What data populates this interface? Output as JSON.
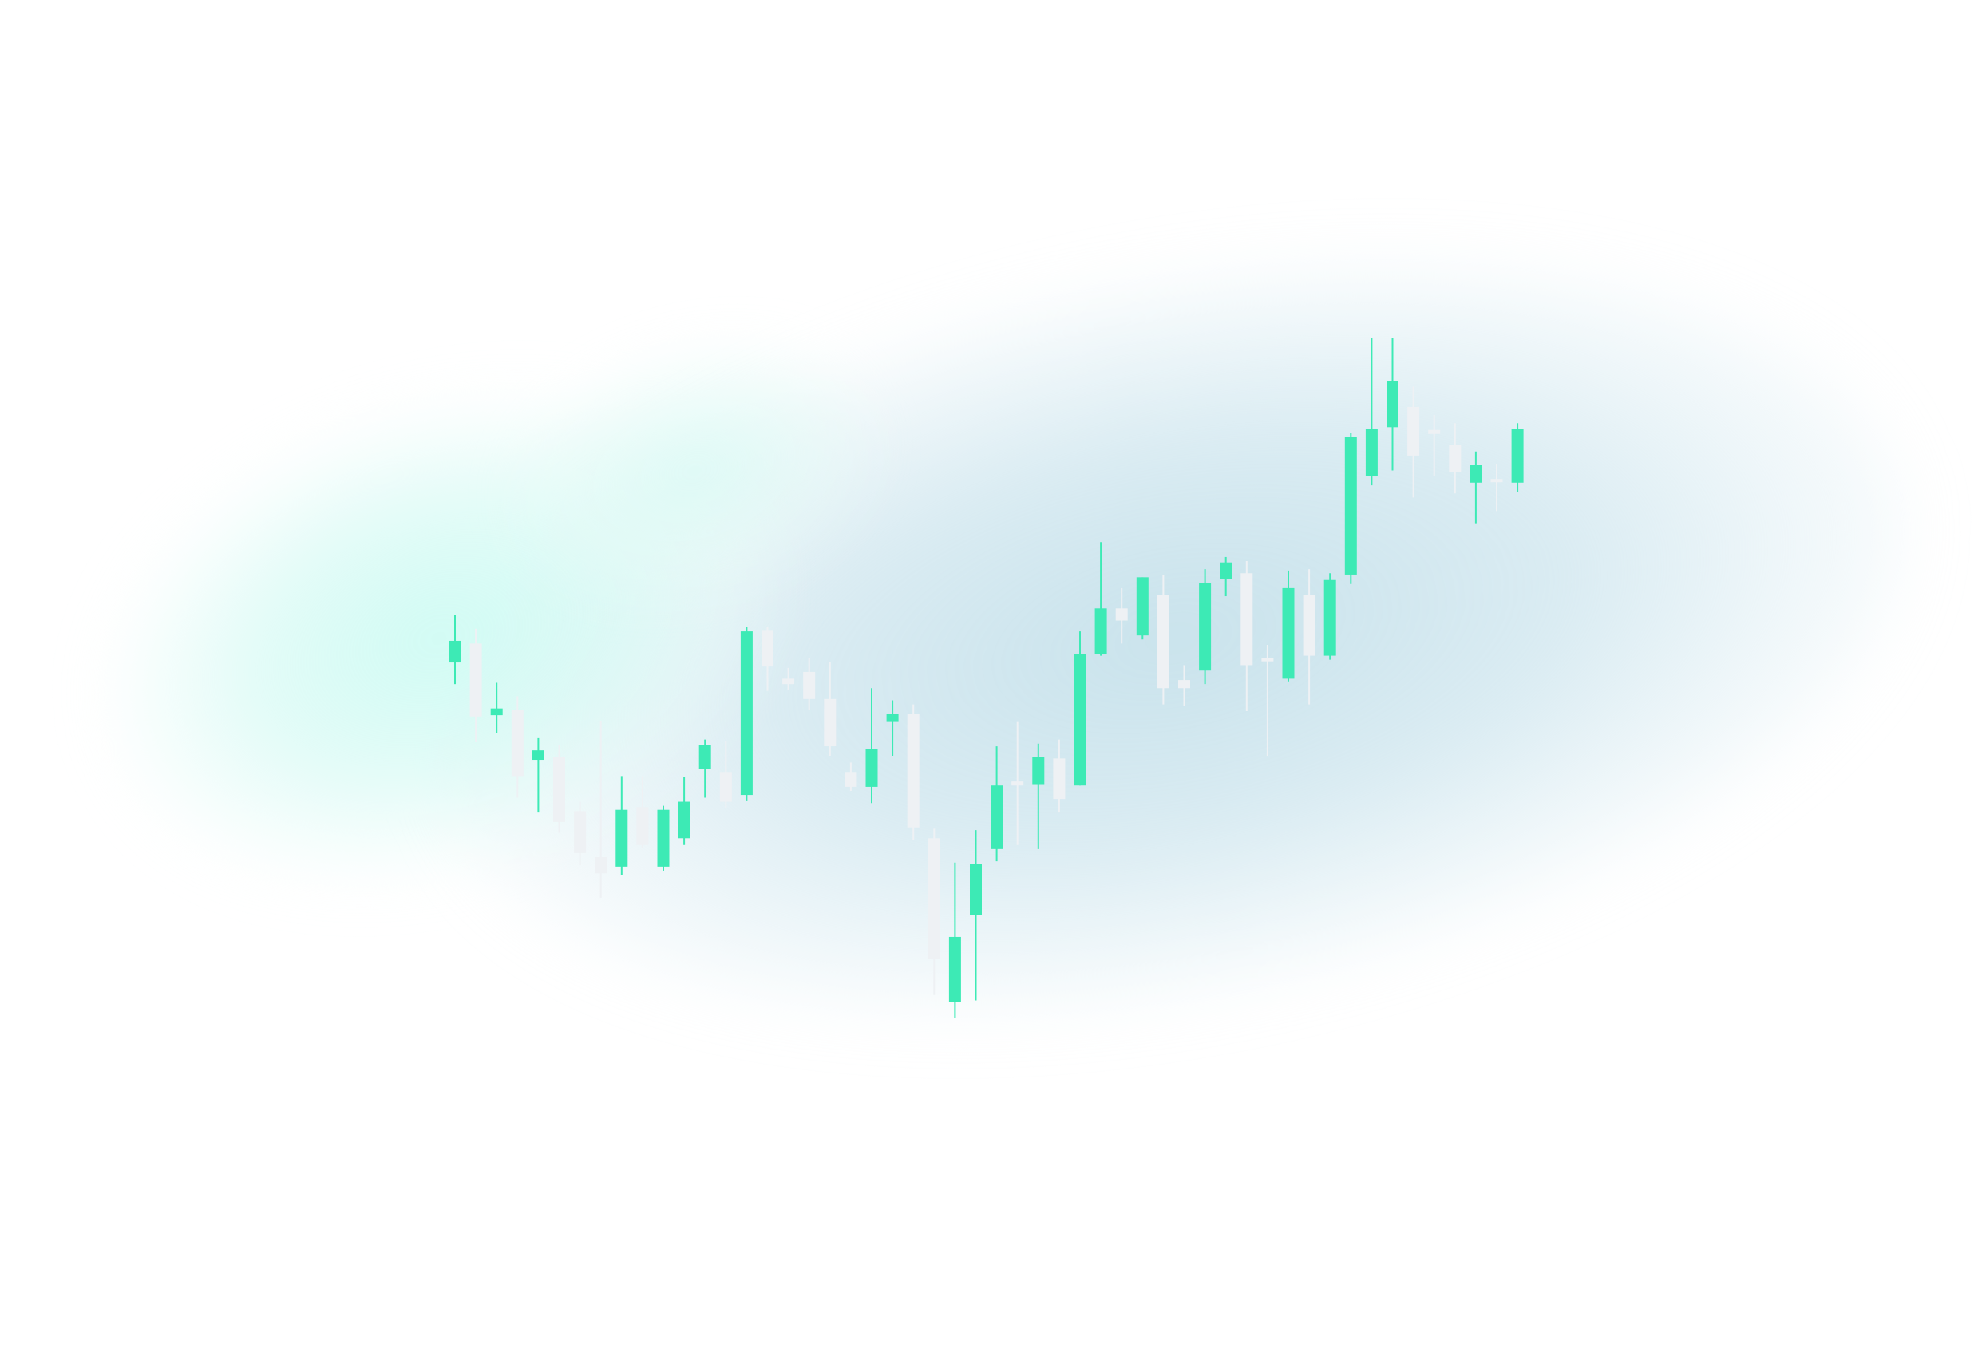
{
  "colors": {
    "up": "#3deab5",
    "down": "#eef1f4",
    "glow_blue": "#cfe5ee",
    "glow_cyan": "#d6fbf4",
    "background": "#ffffff"
  },
  "chart_data": {
    "type": "candlestick",
    "title": "",
    "xlabel": "",
    "ylabel": "",
    "axes_visible": false,
    "grid": false,
    "legend": "none",
    "ylim": [
      0,
      100
    ],
    "candles": [
      {
        "o": 51.0,
        "h": 54.5,
        "l": 49.4,
        "c": 52.6,
        "dir": "up"
      },
      {
        "o": 52.4,
        "h": 53.5,
        "l": 45.1,
        "c": 47.0,
        "dir": "down"
      },
      {
        "o": 47.6,
        "h": 49.5,
        "l": 45.8,
        "c": 47.1,
        "dir": "up"
      },
      {
        "o": 47.5,
        "h": 48.5,
        "l": 41.0,
        "c": 42.6,
        "dir": "down"
      },
      {
        "o": 43.8,
        "h": 45.4,
        "l": 39.9,
        "c": 44.5,
        "dir": "up"
      },
      {
        "o": 44.0,
        "h": 44.9,
        "l": 38.4,
        "c": 39.2,
        "dir": "down"
      },
      {
        "o": 40.0,
        "h": 40.7,
        "l": 36.0,
        "c": 36.9,
        "dir": "down"
      },
      {
        "o": 36.6,
        "h": 46.7,
        "l": 33.6,
        "c": 35.4,
        "dir": "down"
      },
      {
        "o": 35.9,
        "h": 42.6,
        "l": 35.3,
        "c": 40.1,
        "dir": "up"
      },
      {
        "o": 40.3,
        "h": 42.6,
        "l": 37.3,
        "c": 37.5,
        "dir": "down"
      },
      {
        "o": 35.9,
        "h": 40.4,
        "l": 35.6,
        "c": 40.1,
        "dir": "up"
      },
      {
        "o": 38.0,
        "h": 42.5,
        "l": 37.5,
        "c": 40.7,
        "dir": "up"
      },
      {
        "o": 43.1,
        "h": 45.3,
        "l": 41.0,
        "c": 44.9,
        "dir": "up"
      },
      {
        "o": 40.7,
        "h": 45.2,
        "l": 40.2,
        "c": 42.9,
        "dir": "down"
      },
      {
        "o": 41.2,
        "h": 53.6,
        "l": 40.8,
        "c": 53.3,
        "dir": "up"
      },
      {
        "o": 53.4,
        "h": 53.6,
        "l": 48.9,
        "c": 50.7,
        "dir": "down"
      },
      {
        "o": 49.8,
        "h": 50.6,
        "l": 49.0,
        "c": 49.4,
        "dir": "down"
      },
      {
        "o": 50.3,
        "h": 51.3,
        "l": 47.5,
        "c": 48.3,
        "dir": "down"
      },
      {
        "o": 48.3,
        "h": 51.0,
        "l": 44.1,
        "c": 44.8,
        "dir": "down"
      },
      {
        "o": 42.9,
        "h": 43.6,
        "l": 41.5,
        "c": 41.8,
        "dir": "down"
      },
      {
        "o": 41.8,
        "h": 49.1,
        "l": 40.6,
        "c": 44.6,
        "dir": "up"
      },
      {
        "o": 46.6,
        "h": 48.2,
        "l": 44.1,
        "c": 47.2,
        "dir": "up"
      },
      {
        "o": 47.2,
        "h": 47.9,
        "l": 37.9,
        "c": 38.8,
        "dir": "down"
      },
      {
        "o": 38.0,
        "h": 38.7,
        "l": 26.4,
        "c": 29.1,
        "dir": "down"
      },
      {
        "o": 25.9,
        "h": 36.2,
        "l": 24.7,
        "c": 30.7,
        "dir": "up"
      },
      {
        "o": 32.3,
        "h": 38.6,
        "l": 26.0,
        "c": 36.1,
        "dir": "up"
      },
      {
        "o": 37.2,
        "h": 44.8,
        "l": 36.3,
        "c": 41.9,
        "dir": "up"
      },
      {
        "o": 42.2,
        "h": 46.6,
        "l": 37.5,
        "c": 41.9,
        "dir": "down"
      },
      {
        "o": 42.0,
        "h": 45.0,
        "l": 37.2,
        "c": 44.0,
        "dir": "up"
      },
      {
        "o": 43.9,
        "h": 45.3,
        "l": 39.9,
        "c": 40.9,
        "dir": "down"
      },
      {
        "o": 41.9,
        "h": 53.3,
        "l": 41.9,
        "c": 51.6,
        "dir": "up"
      },
      {
        "o": 51.6,
        "h": 59.9,
        "l": 51.5,
        "c": 55.0,
        "dir": "up"
      },
      {
        "o": 54.1,
        "h": 56.5,
        "l": 52.4,
        "c": 55.0,
        "dir": "down"
      },
      {
        "o": 53.0,
        "h": 57.3,
        "l": 52.7,
        "c": 57.3,
        "dir": "up"
      },
      {
        "o": 56.0,
        "h": 57.5,
        "l": 47.9,
        "c": 49.1,
        "dir": "down"
      },
      {
        "o": 49.7,
        "h": 50.8,
        "l": 47.8,
        "c": 49.1,
        "dir": "down"
      },
      {
        "o": 50.4,
        "h": 57.9,
        "l": 49.4,
        "c": 56.9,
        "dir": "up"
      },
      {
        "o": 57.2,
        "h": 58.8,
        "l": 55.9,
        "c": 58.4,
        "dir": "up"
      },
      {
        "o": 57.6,
        "h": 58.5,
        "l": 47.4,
        "c": 50.8,
        "dir": "down"
      },
      {
        "o": 51.3,
        "h": 52.3,
        "l": 44.1,
        "c": 51.1,
        "dir": "down"
      },
      {
        "o": 49.8,
        "h": 57.8,
        "l": 49.6,
        "c": 56.5,
        "dir": "up"
      },
      {
        "o": 56.0,
        "h": 57.9,
        "l": 47.9,
        "c": 51.5,
        "dir": "down"
      },
      {
        "o": 51.5,
        "h": 57.6,
        "l": 51.2,
        "c": 57.1,
        "dir": "up"
      },
      {
        "o": 57.5,
        "h": 68.0,
        "l": 56.8,
        "c": 67.7,
        "dir": "up"
      },
      {
        "o": 64.8,
        "h": 75.0,
        "l": 64.1,
        "c": 68.3,
        "dir": "up"
      },
      {
        "o": 68.4,
        "h": 75.0,
        "l": 65.2,
        "c": 71.8,
        "dir": "up"
      },
      {
        "o": 69.9,
        "h": 71.4,
        "l": 63.2,
        "c": 66.3,
        "dir": "down"
      },
      {
        "o": 68.2,
        "h": 69.3,
        "l": 64.8,
        "c": 67.9,
        "dir": "down"
      },
      {
        "o": 67.1,
        "h": 68.7,
        "l": 63.5,
        "c": 65.1,
        "dir": "down"
      },
      {
        "o": 64.3,
        "h": 66.6,
        "l": 61.3,
        "c": 65.6,
        "dir": "up"
      },
      {
        "o": 64.5,
        "h": 65.7,
        "l": 62.2,
        "c": 64.4,
        "dir": "down"
      },
      {
        "o": 64.3,
        "h": 68.7,
        "l": 63.6,
        "c": 68.3,
        "dir": "up"
      }
    ]
  }
}
